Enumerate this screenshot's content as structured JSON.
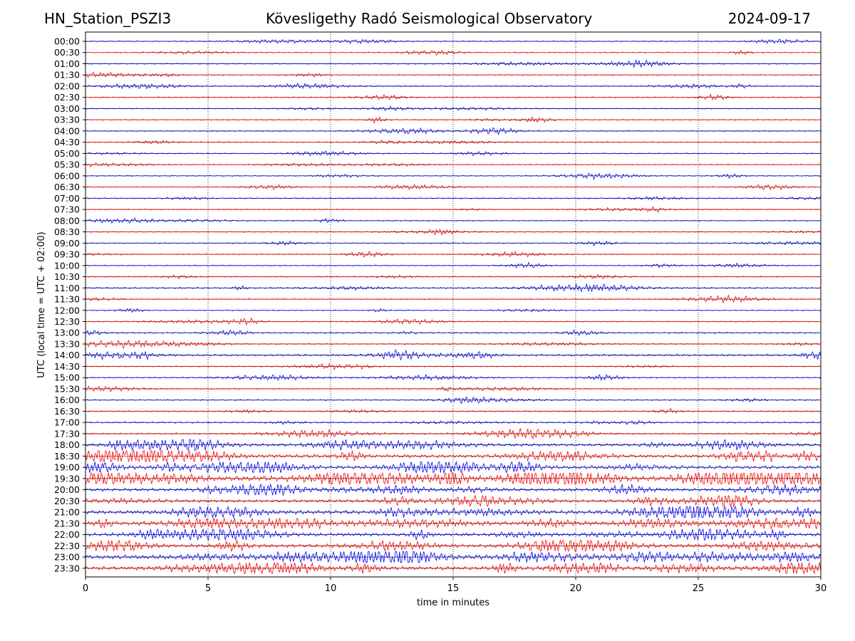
{
  "header": {
    "station": "HN_Station_PSZI3",
    "observatory": "Kövesligethy Radó Seismological Observatory",
    "date": "2024-09-17"
  },
  "chart_data": {
    "type": "line",
    "xlabel": "time in minutes",
    "ylabel": "UTC (local time = UTC + 02:00)",
    "xlim": [
      0,
      30
    ],
    "xticks": [
      0,
      5,
      10,
      15,
      20,
      25,
      30
    ],
    "vertical_grid_minutes": [
      5,
      10,
      15,
      20,
      25
    ],
    "grid": "vertical dotted",
    "rows": [
      "00:00",
      "00:30",
      "01:00",
      "01:30",
      "02:00",
      "02:30",
      "03:00",
      "03:30",
      "04:00",
      "04:30",
      "05:00",
      "05:30",
      "06:00",
      "06:30",
      "07:00",
      "07:30",
      "08:00",
      "08:30",
      "09:00",
      "09:30",
      "10:00",
      "10:30",
      "11:00",
      "11:30",
      "12:00",
      "12:30",
      "13:00",
      "13:30",
      "14:00",
      "14:30",
      "15:00",
      "15:30",
      "16:00",
      "16:30",
      "17:00",
      "17:30",
      "18:00",
      "18:30",
      "19:00",
      "19:30",
      "20:00",
      "20:30",
      "21:00",
      "21:30",
      "22:00",
      "22:30",
      "23:00",
      "23:30"
    ],
    "colors": [
      "#0000ff",
      "#ff0000"
    ],
    "separator_color": "#000000",
    "activity_levels": [
      0.08,
      0.06,
      0.1,
      0.07,
      0.12,
      0.07,
      0.08,
      0.07,
      0.09,
      0.07,
      0.06,
      0.06,
      0.07,
      0.06,
      0.1,
      0.06,
      0.07,
      0.06,
      0.08,
      0.07,
      0.06,
      0.06,
      0.14,
      0.07,
      0.07,
      0.07,
      0.15,
      0.12,
      0.25,
      0.08,
      0.09,
      0.08,
      0.09,
      0.1,
      0.15,
      0.18,
      0.45,
      0.6,
      0.55,
      1.0,
      0.5,
      0.45,
      0.65,
      0.6,
      0.55,
      0.55,
      0.7,
      0.6
    ]
  }
}
